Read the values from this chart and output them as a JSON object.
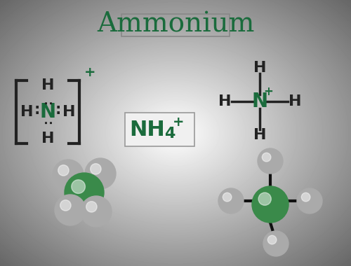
{
  "title": "Ammonium",
  "title_color": "#1a6b3c",
  "title_fontsize": 28,
  "background_gradient": [
    "#e8e8e8",
    "#f5f5f5",
    "#ffffff",
    "#f5f5f5",
    "#e8e8e8"
  ],
  "formula_text": "NH",
  "formula_sub": "4",
  "formula_sup": "+",
  "formula_color": "#1a6b3c",
  "N_color": "#1a6b3c",
  "H_color": "#222222",
  "bond_color": "#222222",
  "plus_color": "#1a6b3c",
  "bracket_color": "#222222",
  "atom_N_3d_color": "#3a8a4a",
  "atom_H_3d_color": "#aaaaaa"
}
